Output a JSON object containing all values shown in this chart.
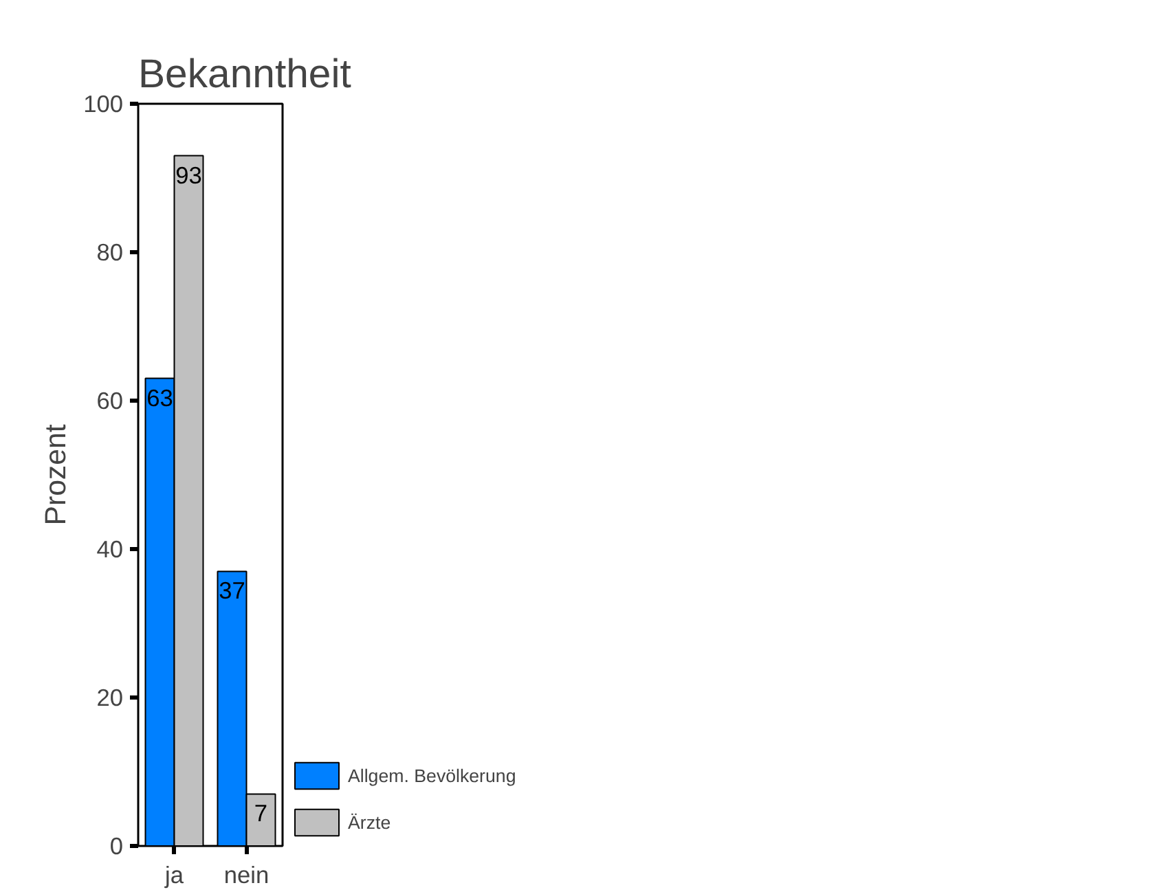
{
  "chart_data": {
    "type": "bar",
    "title": "Bekanntheit",
    "ylabel": "Prozent",
    "categories": [
      "ja",
      "nein"
    ],
    "series": [
      {
        "name": "Allgem. Bevölkerung",
        "color": "#0080ff",
        "values": [
          63,
          37
        ]
      },
      {
        "name": "Ärzte",
        "color": "#c0c0c0",
        "values": [
          93,
          7
        ]
      }
    ],
    "ylim": [
      0,
      100
    ],
    "yticks": [
      0,
      20,
      40,
      60,
      80,
      100
    ],
    "grid": false,
    "legend": "bottom right",
    "data_labels": true
  }
}
